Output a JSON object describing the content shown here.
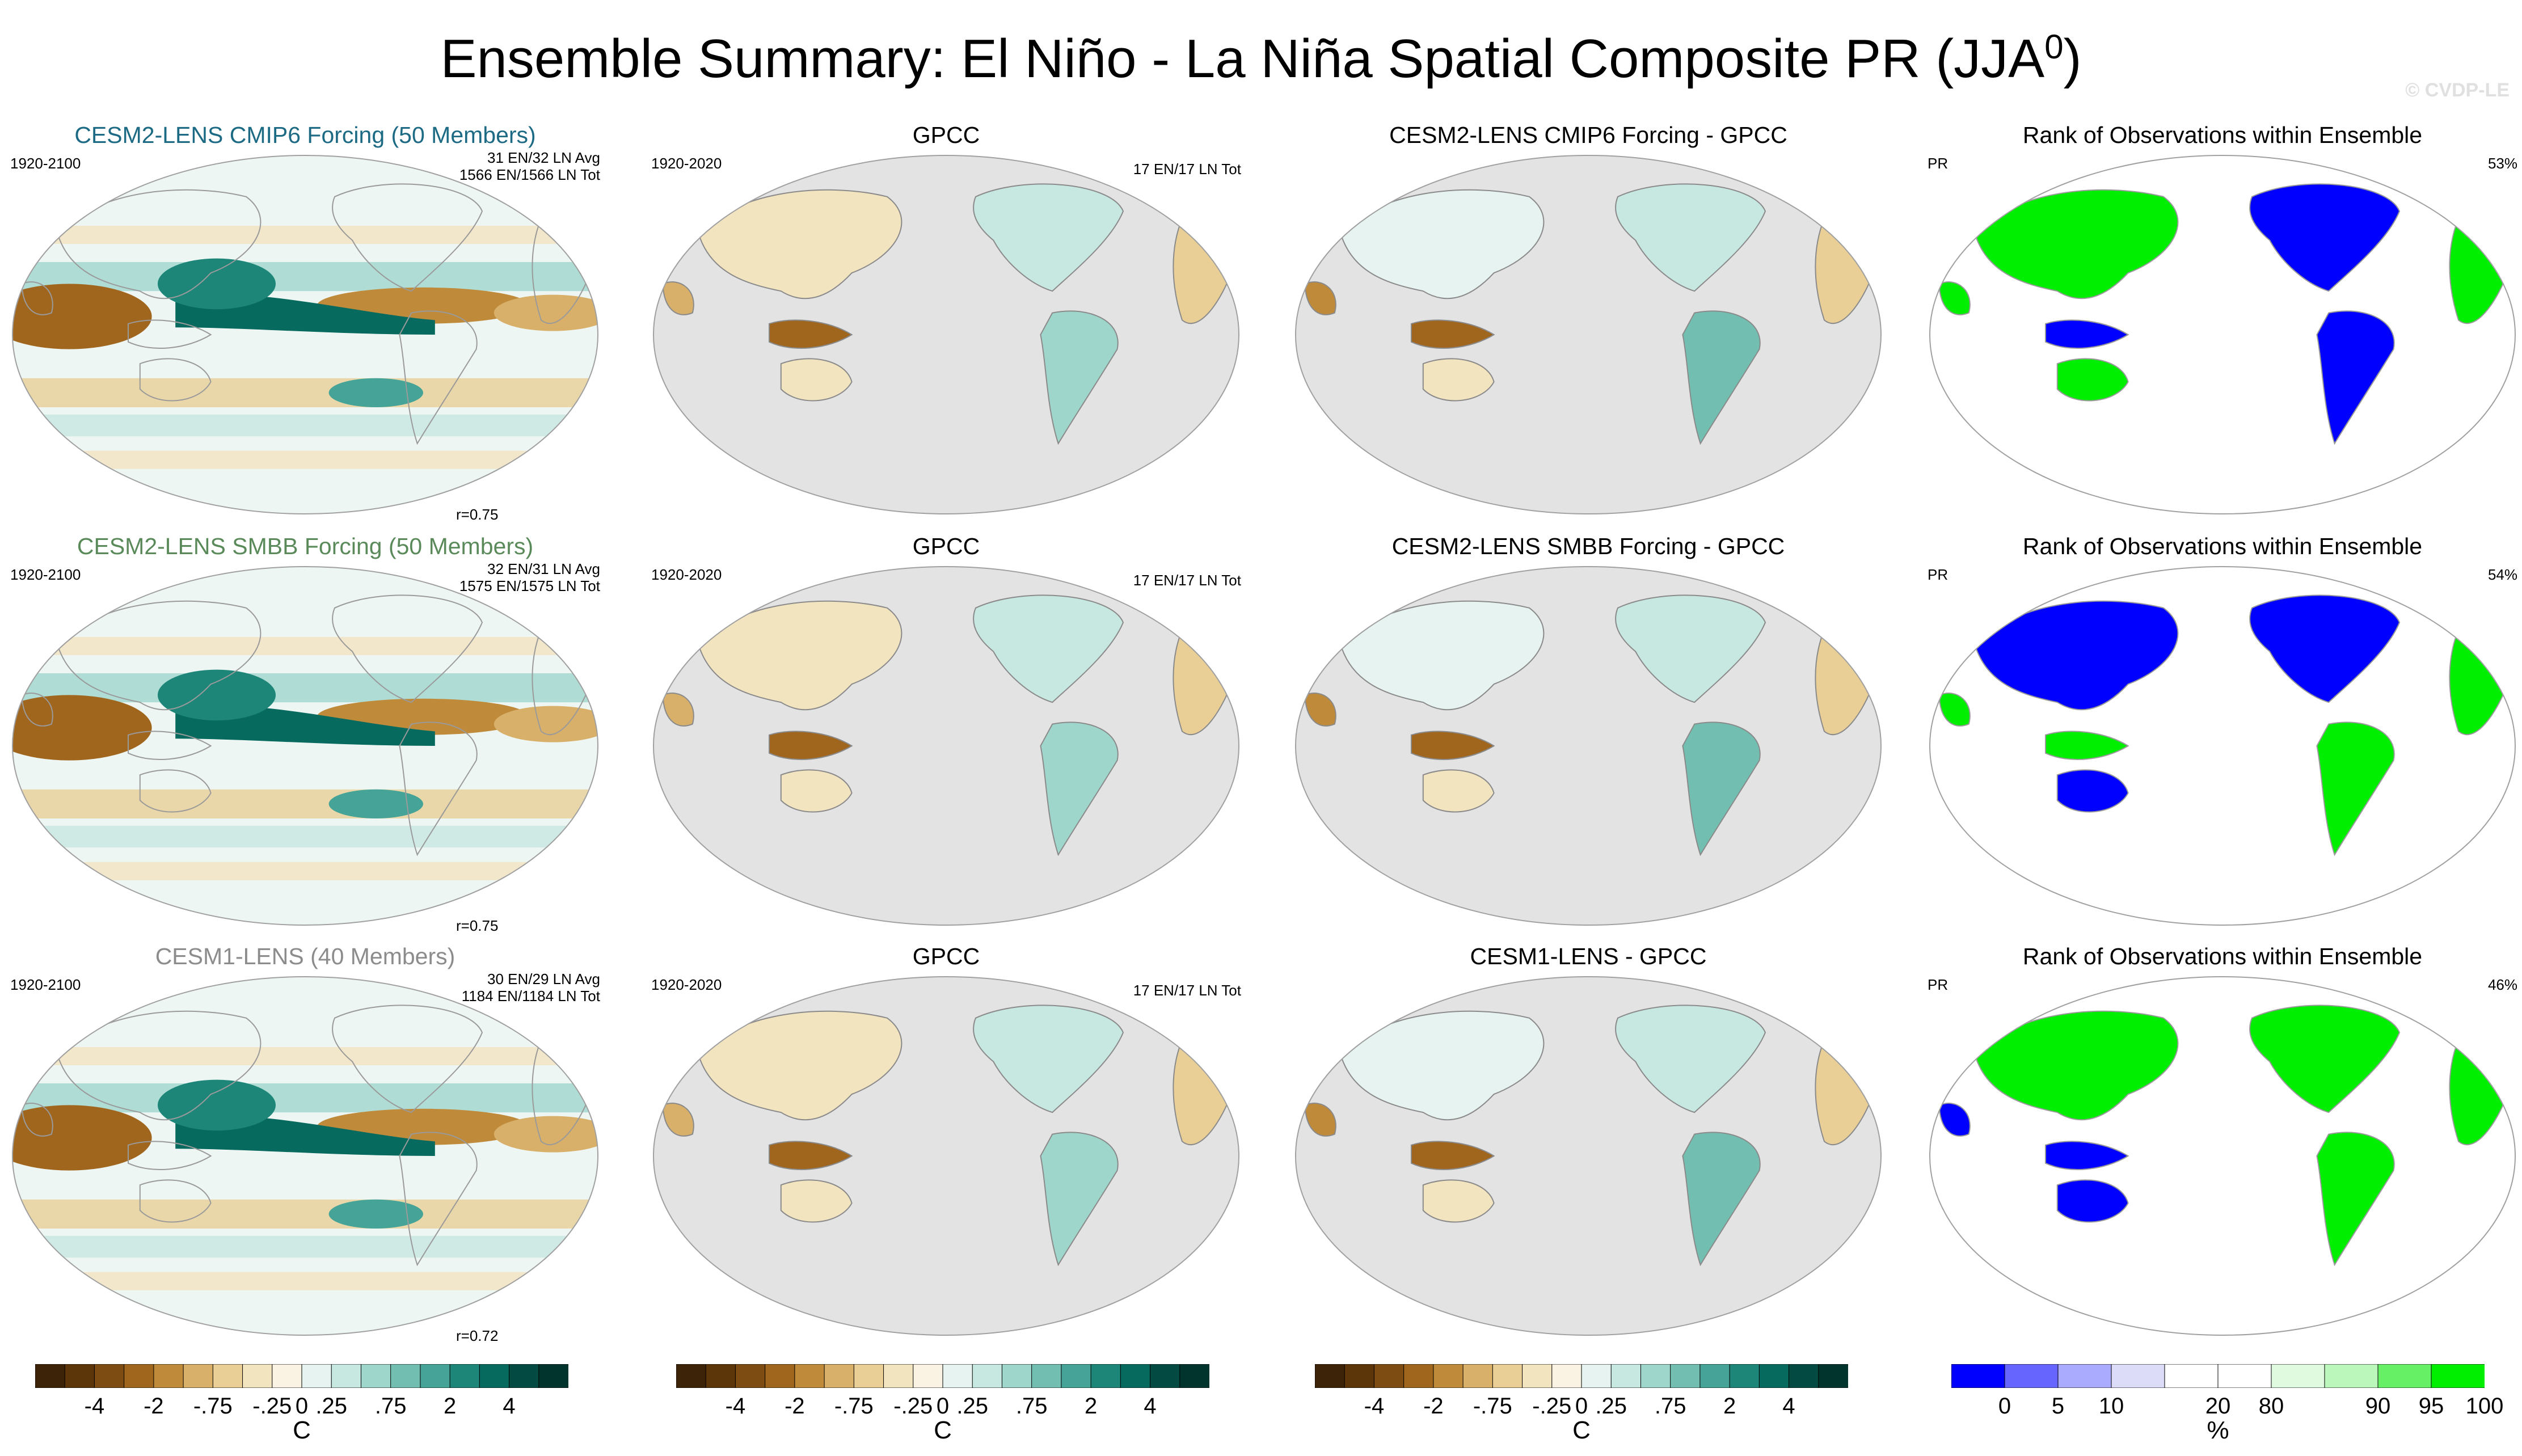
{
  "title": "Ensemble Summary: El Niño - La Niña Spatial Composite PR (JJA",
  "title_sup": "0",
  "title_close": ")",
  "copyright": "© CVDP-LE",
  "rows": [
    {
      "ens": {
        "title": "CESM2-LENS CMIP6 Forcing (50 Members)",
        "title_color": "#1c6a83",
        "years": "1920-2100",
        "stats1": "31 EN/32 LN Avg",
        "stats2": "1566 EN/1566 LN Tot",
        "r": "r=0.75"
      },
      "obs": {
        "title": "GPCC",
        "years": "1920-2020",
        "stats": "17 EN/17 LN Tot"
      },
      "diff": {
        "title": "CESM2-LENS CMIP6 Forcing - GPCC"
      },
      "rank": {
        "title": "Rank of Observations within Ensemble",
        "var": "PR",
        "pct": "53%"
      }
    },
    {
      "ens": {
        "title": "CESM2-LENS SMBB Forcing (50 Members)",
        "title_color": "#5a8a5a",
        "years": "1920-2100",
        "stats1": "32 EN/31 LN Avg",
        "stats2": "1575 EN/1575 LN Tot",
        "r": "r=0.75"
      },
      "obs": {
        "title": "GPCC",
        "years": "1920-2020",
        "stats": "17 EN/17 LN Tot"
      },
      "diff": {
        "title": "CESM2-LENS SMBB Forcing - GPCC"
      },
      "rank": {
        "title": "Rank of Observations within Ensemble",
        "var": "PR",
        "pct": "54%"
      }
    },
    {
      "ens": {
        "title": "CESM1-LENS (40 Members)",
        "title_color": "#8c8c8c",
        "years": "1920-2100",
        "stats1": "30 EN/29 LN Avg",
        "stats2": "1184 EN/1184 LN Tot",
        "r": "r=0.72"
      },
      "obs": {
        "title": "GPCC",
        "years": "1920-2020",
        "stats": "17 EN/17 LN Tot"
      },
      "diff": {
        "title": "CESM1-LENS - GPCC"
      },
      "rank": {
        "title": "Rank of Observations within Ensemble",
        "var": "PR",
        "pct": "46%"
      }
    }
  ],
  "colorbar_pr": {
    "unit": "C",
    "tick_labels": [
      "-4",
      "-2",
      "-.75",
      "-.25",
      "0",
      ".25",
      ".75",
      "2",
      "4"
    ],
    "colors": [
      "#3d2408",
      "#5c3508",
      "#7d4c12",
      "#a0661e",
      "#bf8a3a",
      "#d8b06a",
      "#e9cf96",
      "#f3e4c0",
      "#faf3e3",
      "#e6f3f0",
      "#c7e7e1",
      "#9fd6cc",
      "#72bfb2",
      "#45a497",
      "#1d8679",
      "#076a5e",
      "#034b42",
      "#01342d"
    ]
  },
  "colorbar_rank": {
    "unit": "%",
    "tick_labels": [
      "0",
      "5",
      "10",
      "20",
      "80",
      "90",
      "95",
      "100"
    ],
    "colors": [
      "#0000ff",
      "#6666ff",
      "#aaaaff",
      "#dcdcf8",
      "#ffffff",
      "#ffffff",
      "#e0fae0",
      "#bbf7bb",
      "#66f066",
      "#00ee00"
    ]
  },
  "chart_data": [
    {
      "type": "heatmap",
      "title": "CESM2-LENS CMIP6 Forcing (50 Members)",
      "period": "1920-2100",
      "pattern_correlation": 0.75,
      "unit": "C",
      "colorbar_ticks": [
        -4,
        -2,
        -0.75,
        -0.25,
        0,
        0.25,
        0.75,
        2,
        4
      ]
    },
    {
      "type": "heatmap",
      "title": "GPCC",
      "period": "1920-2020",
      "events": "17 EN/17 LN Tot"
    },
    {
      "type": "heatmap",
      "title": "CESM2-LENS CMIP6 Forcing - GPCC"
    },
    {
      "type": "heatmap",
      "title": "Rank of Observations within Ensemble",
      "variable": "PR",
      "percent": 53,
      "unit": "%",
      "colorbar_ticks": [
        0,
        5,
        10,
        20,
        80,
        90,
        95,
        100
      ]
    },
    {
      "type": "heatmap",
      "title": "CESM2-LENS SMBB Forcing (50 Members)",
      "period": "1920-2100",
      "pattern_correlation": 0.75
    },
    {
      "type": "heatmap",
      "title": "GPCC",
      "period": "1920-2020",
      "events": "17 EN/17 LN Tot"
    },
    {
      "type": "heatmap",
      "title": "CESM2-LENS SMBB Forcing - GPCC"
    },
    {
      "type": "heatmap",
      "title": "Rank of Observations within Ensemble",
      "variable": "PR",
      "percent": 54
    },
    {
      "type": "heatmap",
      "title": "CESM1-LENS (40 Members)",
      "period": "1920-2100",
      "pattern_correlation": 0.72
    },
    {
      "type": "heatmap",
      "title": "GPCC",
      "period": "1920-2020",
      "events": "17 EN/17 LN Tot"
    },
    {
      "type": "heatmap",
      "title": "CESM1-LENS - GPCC"
    },
    {
      "type": "heatmap",
      "title": "Rank of Observations within Ensemble",
      "variable": "PR",
      "percent": 46
    }
  ]
}
